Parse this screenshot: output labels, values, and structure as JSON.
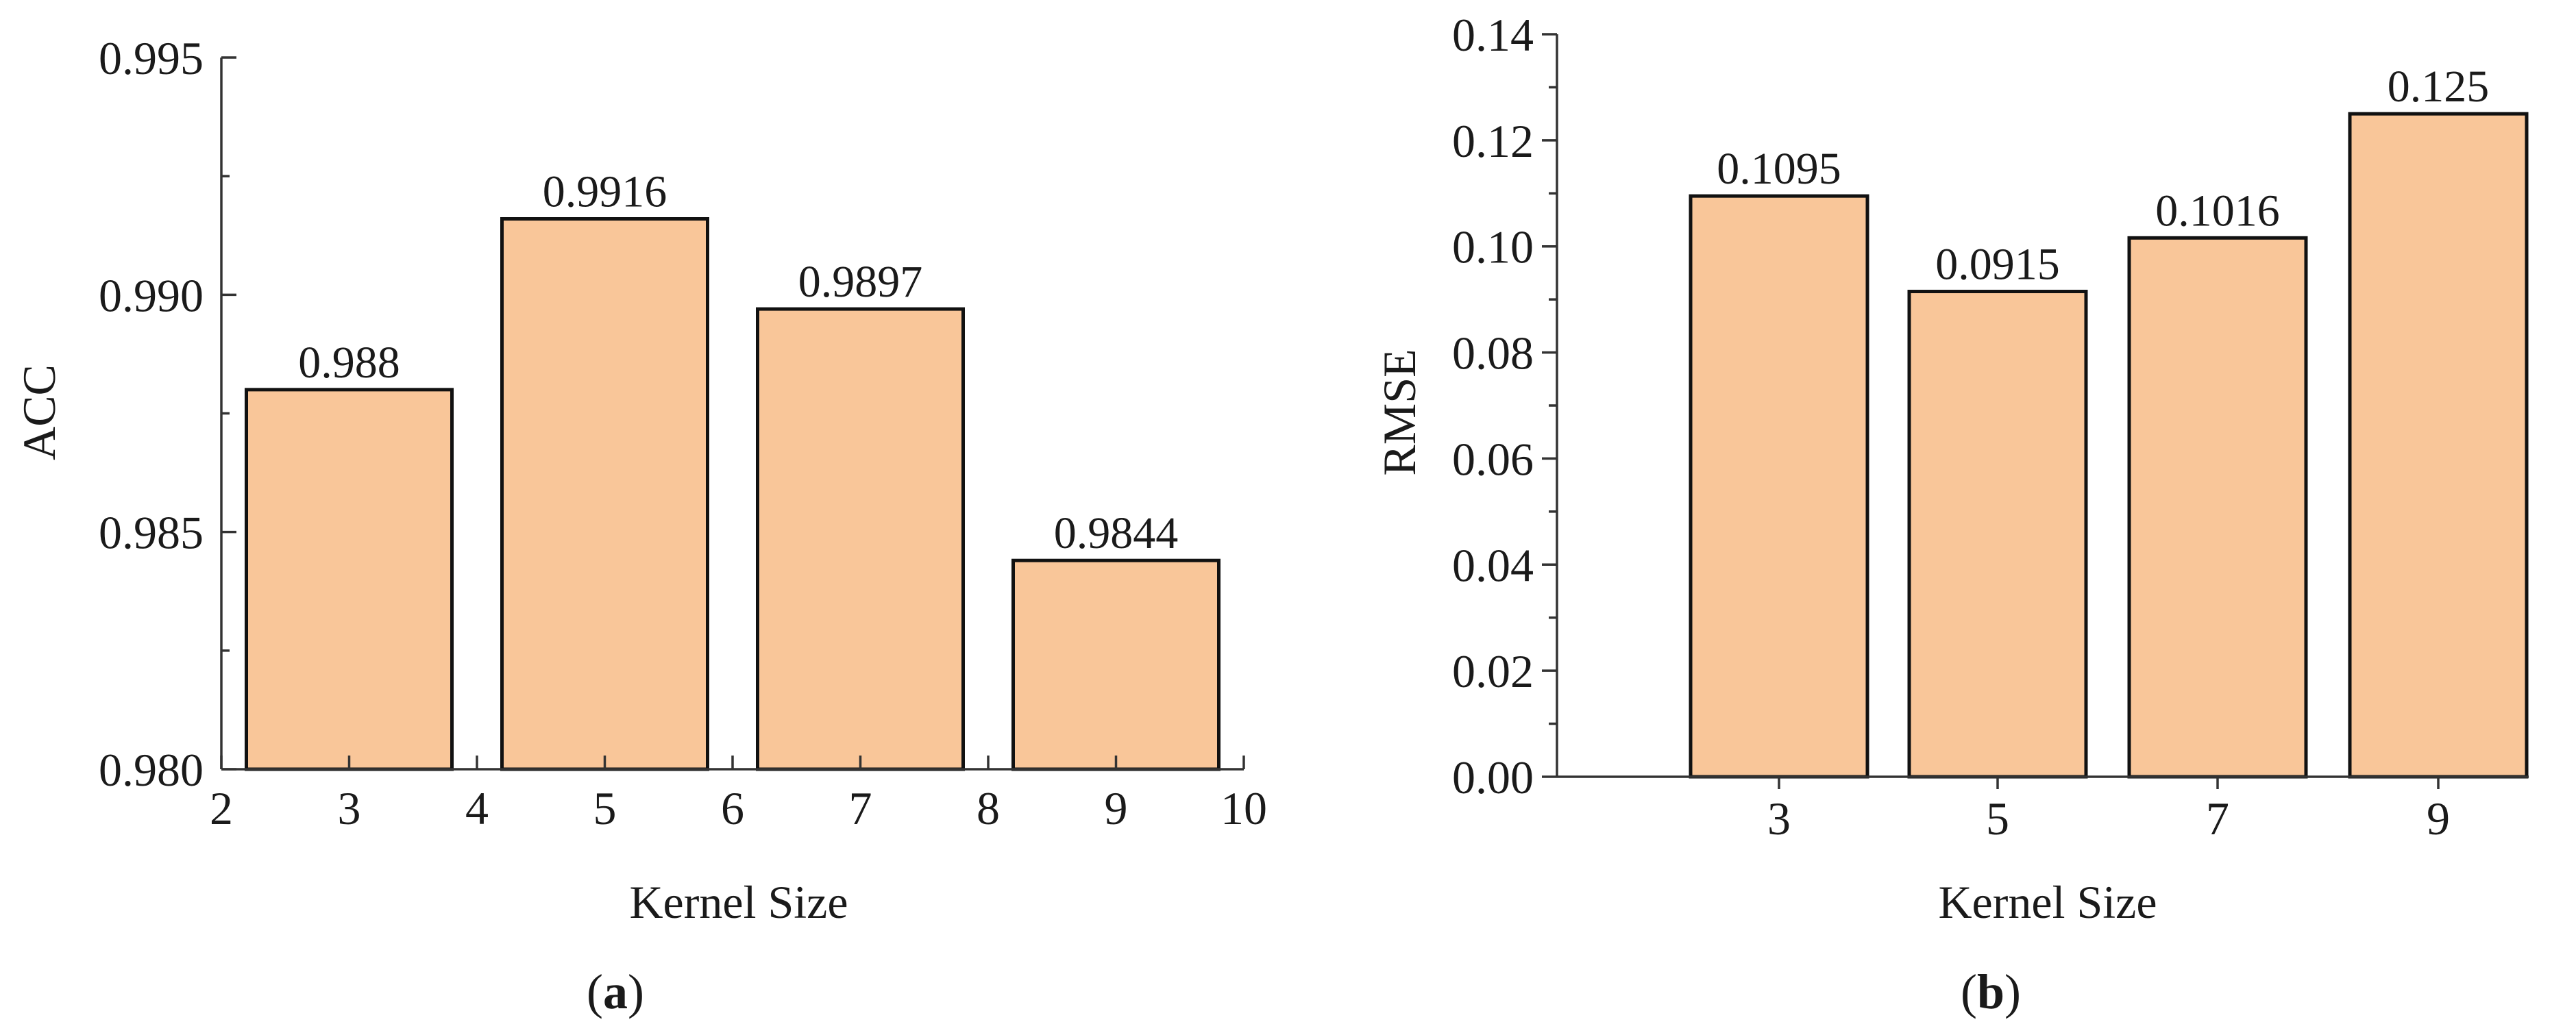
{
  "chart_data": [
    {
      "type": "bar",
      "panel_label": "a",
      "xlabel": "Kernel Size",
      "ylabel": "ACC",
      "categories": [
        "3",
        "5",
        "7",
        "9"
      ],
      "x": [
        3,
        5,
        7,
        9
      ],
      "values": [
        0.988,
        0.9916,
        0.9897,
        0.9844
      ],
      "data_labels": [
        "0.988",
        "0.9916",
        "0.9897",
        "0.9844"
      ],
      "xlim": [
        2,
        10
      ],
      "ylim": [
        0.98,
        0.995
      ],
      "xticks": [
        2,
        3,
        4,
        5,
        6,
        7,
        8,
        9,
        10
      ],
      "xtick_labels": [
        "2",
        "3",
        "4",
        "5",
        "6",
        "7",
        "8",
        "9",
        "10"
      ],
      "yticks": [
        0.98,
        0.985,
        0.99,
        0.995
      ],
      "ytick_labels": [
        "0.980",
        "0.985",
        "0.990",
        "0.995"
      ],
      "bar_color": "#F9C699",
      "edge_color": "#111111",
      "grid": false,
      "legend": "none"
    },
    {
      "type": "bar",
      "panel_label": "b",
      "xlabel": "Kernel Size",
      "ylabel": "RMSE",
      "categories": [
        "3",
        "5",
        "7",
        "9"
      ],
      "values": [
        0.1095,
        0.0915,
        0.1016,
        0.125
      ],
      "data_labels": [
        "0.1095",
        "0.0915",
        "0.1016",
        "0.125"
      ],
      "ylim": [
        0,
        0.14
      ],
      "yticks": [
        0,
        0.02,
        0.04,
        0.06,
        0.08,
        0.1,
        0.12,
        0.14
      ],
      "ytick_labels": [
        "0.00",
        "0.02",
        "0.04",
        "0.06",
        "0.08",
        "0.10",
        "0.12",
        "0.14"
      ],
      "bar_color": "#F9C699",
      "edge_color": "#111111",
      "grid": false,
      "legend": "none"
    }
  ],
  "captions": [
    "a",
    "b"
  ]
}
